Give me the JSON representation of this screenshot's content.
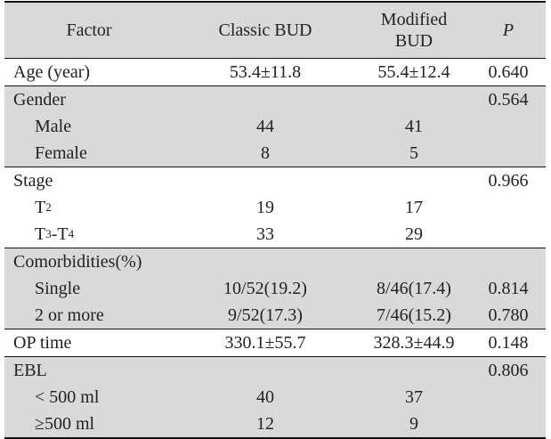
{
  "headers": {
    "factor": "Factor",
    "classic": "Classic BUD",
    "modified_line1": "Modified",
    "modified_line2": "BUD",
    "p": "P"
  },
  "rows": [
    {
      "factor": "Age (year)",
      "classic": "53.4±11.8",
      "modified": "55.4±12.4",
      "p": "0.640"
    },
    {
      "factor": "Gender",
      "classic": "",
      "modified": "",
      "p": "0.564"
    },
    {
      "factor": "Male",
      "classic": "44",
      "modified": "41",
      "p": ""
    },
    {
      "factor": "Female",
      "classic": "8",
      "modified": "5",
      "p": ""
    },
    {
      "factor": "Stage",
      "classic": "",
      "modified": "",
      "p": "0.966"
    },
    {
      "factor": "T",
      "factor_sub": "2",
      "classic": "19",
      "modified": "17",
      "p": ""
    },
    {
      "factor": "T",
      "factor_sub": "3",
      "factor_mid": "-T",
      "factor_sub2": "4",
      "classic": "33",
      "modified": "29",
      "p": ""
    },
    {
      "factor": "Comorbidities(%)",
      "classic": "",
      "modified": "",
      "p": ""
    },
    {
      "factor": "Single",
      "classic": "10/52(19.2)",
      "modified": "8/46(17.4)",
      "p": "0.814"
    },
    {
      "factor": "2 or more",
      "classic": "9/52(17.3)",
      "modified": "7/46(15.2)",
      "p": "0.780"
    },
    {
      "factor": "OP time",
      "classic": "330.1±55.7",
      "modified": "328.3±44.9",
      "p": "0.148"
    },
    {
      "factor": "EBL",
      "classic": "",
      "modified": "",
      "p": "0.806"
    },
    {
      "factor": "< 500 ml",
      "classic": "40",
      "modified": "37",
      "p": ""
    },
    {
      "factor": "≥500 ml",
      "classic": "12",
      "modified": "9",
      "p": ""
    }
  ]
}
